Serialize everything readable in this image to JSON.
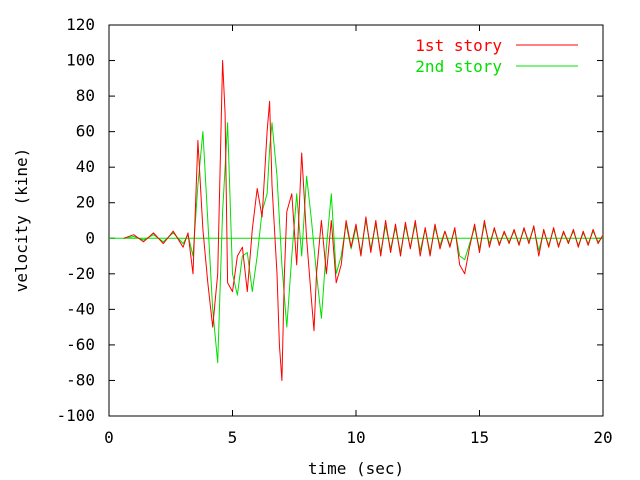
{
  "chart_data": {
    "type": "line",
    "title": "",
    "xlabel": "time (sec)",
    "ylabel": "velocity (kine)",
    "xlim": [
      0,
      20
    ],
    "ylim": [
      -100,
      120
    ],
    "xticks": [
      0,
      5,
      10,
      15,
      20
    ],
    "yticks": [
      -100,
      -80,
      -60,
      -40,
      -20,
      0,
      20,
      40,
      60,
      80,
      100,
      120
    ],
    "grid": false,
    "legend_position": "top-right",
    "zero_line": true,
    "series": [
      {
        "name": "1st story",
        "color": "#ff0000",
        "x": [
          0.6,
          1.0,
          1.4,
          1.8,
          2.2,
          2.6,
          3.0,
          3.2,
          3.4,
          3.6,
          3.8,
          4.0,
          4.2,
          4.4,
          4.6,
          4.7,
          4.8,
          5.0,
          5.2,
          5.4,
          5.6,
          5.8,
          6.0,
          6.2,
          6.4,
          6.5,
          6.6,
          6.8,
          6.9,
          7.0,
          7.1,
          7.2,
          7.4,
          7.6,
          7.8,
          8.0,
          8.2,
          8.3,
          8.4,
          8.6,
          8.8,
          9.0,
          9.2,
          9.4,
          9.6,
          9.8,
          10.0,
          10.2,
          10.4,
          10.6,
          10.8,
          11.0,
          11.2,
          11.4,
          11.6,
          11.8,
          12.0,
          12.2,
          12.4,
          12.6,
          12.8,
          13.0,
          13.2,
          13.4,
          13.6,
          13.8,
          14.0,
          14.2,
          14.4,
          14.6,
          14.8,
          15.0,
          15.2,
          15.4,
          15.6,
          15.8,
          16.0,
          16.2,
          16.4,
          16.6,
          16.8,
          17.0,
          17.2,
          17.4,
          17.6,
          17.8,
          18.0,
          18.2,
          18.4,
          18.6,
          18.8,
          19.0,
          19.2,
          19.4,
          19.6,
          19.8,
          20.0
        ],
        "y": [
          0,
          2,
          -2,
          3,
          -3,
          4,
          -5,
          3,
          -20,
          55,
          5,
          -25,
          -50,
          -20,
          100,
          70,
          -25,
          -30,
          -10,
          -5,
          -30,
          5,
          28,
          12,
          60,
          77,
          30,
          -20,
          -60,
          -80,
          -20,
          15,
          25,
          -15,
          48,
          0,
          -35,
          -52,
          -20,
          10,
          -20,
          10,
          -25,
          -15,
          10,
          -5,
          8,
          -10,
          12,
          -8,
          10,
          -10,
          10,
          -8,
          8,
          -10,
          9,
          -6,
          10,
          -10,
          6,
          -10,
          8,
          -6,
          4,
          -5,
          6,
          -15,
          -20,
          -5,
          8,
          -8,
          10,
          -5,
          6,
          -4,
          4,
          -3,
          5,
          -4,
          6,
          -3,
          7,
          -10,
          5,
          -5,
          6,
          -5,
          4,
          -3,
          5,
          -5,
          4,
          -4,
          5,
          -3,
          2
        ]
      },
      {
        "name": "2nd story",
        "color": "#00e000",
        "x": [
          0.6,
          1.0,
          1.4,
          1.8,
          2.2,
          2.6,
          3.0,
          3.2,
          3.4,
          3.6,
          3.8,
          4.0,
          4.2,
          4.4,
          4.6,
          4.8,
          5.0,
          5.2,
          5.4,
          5.6,
          5.8,
          6.0,
          6.2,
          6.4,
          6.5,
          6.6,
          6.8,
          7.0,
          7.2,
          7.4,
          7.6,
          7.8,
          8.0,
          8.2,
          8.4,
          8.6,
          8.8,
          9.0,
          9.2,
          9.4,
          9.6,
          9.8,
          10.0,
          10.2,
          10.4,
          10.6,
          10.8,
          11.0,
          11.2,
          11.4,
          11.6,
          11.8,
          12.0,
          12.2,
          12.4,
          12.6,
          12.8,
          13.0,
          13.2,
          13.4,
          13.6,
          13.8,
          14.0,
          14.2,
          14.4,
          14.6,
          14.8,
          15.0,
          15.2,
          15.4,
          15.6,
          15.8,
          16.0,
          16.2,
          16.4,
          16.6,
          16.8,
          17.0,
          17.2,
          17.4,
          17.6,
          17.8,
          18.0,
          18.2,
          18.4,
          18.6,
          18.8,
          19.0,
          19.2,
          19.4,
          19.6,
          19.8,
          20.0
        ],
        "y": [
          0,
          1,
          -1,
          2,
          -2,
          3,
          -3,
          2,
          -10,
          30,
          60,
          10,
          -40,
          -70,
          15,
          65,
          -20,
          -32,
          -10,
          -8,
          -30,
          -10,
          15,
          25,
          50,
          65,
          35,
          -15,
          -50,
          -10,
          25,
          -10,
          35,
          10,
          -20,
          -45,
          -5,
          25,
          -20,
          -10,
          8,
          -6,
          6,
          -8,
          10,
          -6,
          8,
          -8,
          7,
          -6,
          6,
          -8,
          7,
          -5,
          8,
          -7,
          5,
          -8,
          6,
          -4,
          4,
          -4,
          5,
          -10,
          -12,
          -3,
          6,
          -6,
          8,
          -3,
          5,
          -3,
          3,
          -2,
          4,
          -3,
          5,
          -2,
          6,
          -7,
          4,
          -4,
          5,
          -4,
          3,
          -2,
          4,
          -4,
          3,
          -3,
          4,
          -2,
          1
        ]
      }
    ]
  }
}
